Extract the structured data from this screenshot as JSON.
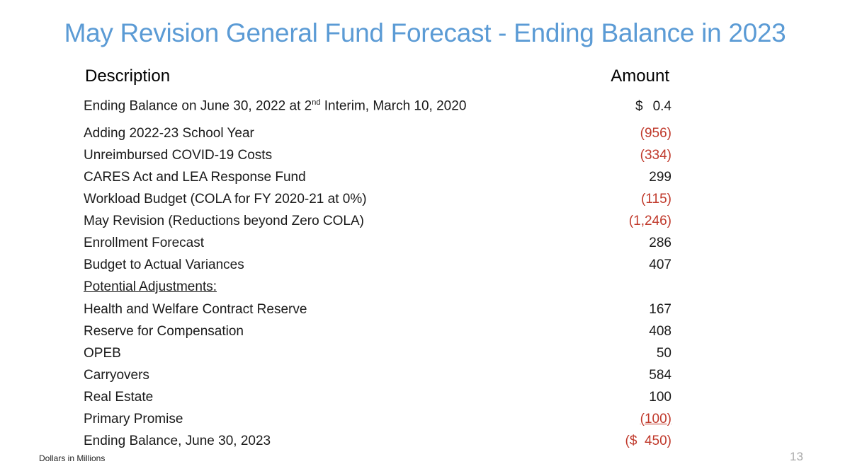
{
  "title": "May Revision General Fund Forecast  - Ending Balance in 2023",
  "headers": {
    "description": "Description",
    "amount": "Amount"
  },
  "opening": {
    "label_pre": "Ending Balance on June 30, 2022 at 2",
    "label_sup": "nd",
    "label_post": " Interim, March 10, 2020",
    "currency": "$",
    "value": "0.4"
  },
  "rows": [
    {
      "label": "Adding 2022-23 School Year",
      "amount": "(956)",
      "negative": true
    },
    {
      "label": "Unreimbursed COVID-19 Costs",
      "amount": "(334)",
      "negative": true
    },
    {
      "label": "CARES Act and LEA Response Fund",
      "amount": "299",
      "negative": false
    },
    {
      "label": "Workload Budget (COLA for FY 2020-21 at 0%)",
      "amount": "(115)",
      "negative": true
    },
    {
      "label": "May Revision (Reductions beyond Zero COLA)",
      "amount": "(1,246)",
      "negative": true
    },
    {
      "label": "Enrollment Forecast",
      "amount": "286",
      "negative": false
    },
    {
      "label": "Budget to Actual Variances",
      "amount": "407",
      "negative": false
    }
  ],
  "adjustments_heading": "Potential Adjustments:",
  "adjustments": [
    {
      "label": "Health and Welfare Contract Reserve",
      "amount": "167",
      "negative": false
    },
    {
      "label": "Reserve for Compensation",
      "amount": "408",
      "negative": false
    },
    {
      "label": "OPEB",
      "amount": "50",
      "negative": false
    },
    {
      "label": "Carryovers",
      "amount": "584",
      "negative": false
    },
    {
      "label": "Real Estate",
      "amount": "100",
      "negative": false
    },
    {
      "label": "Primary Promise",
      "amount": "(100)",
      "negative": true,
      "underline": true
    }
  ],
  "ending": {
    "label": "Ending Balance, June 30, 2023",
    "amount": "($  450)",
    "negative": true
  },
  "footnote": "Dollars in Millions",
  "page_number": "13",
  "colors": {
    "title": "#5b9bd5",
    "negative": "#c0392b",
    "page_number": "#aaaaaa"
  }
}
